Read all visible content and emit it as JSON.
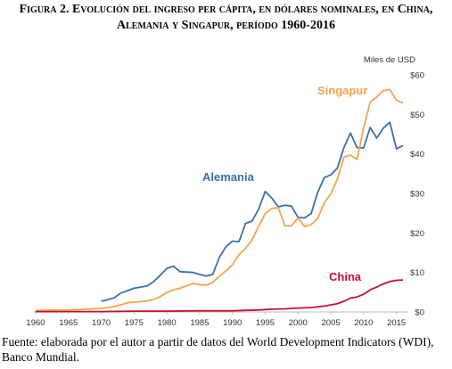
{
  "figure": {
    "title_line1": "Figura 2. Evolución del ingreso per cápita, en dólares nominales, en China,",
    "title_line2": "Alemania y Singapur, período 1960-2016",
    "source_line1": "Fuente: elaborada por el autor a partir de datos del World Development Indicators (WDI),",
    "source_line2": "Banco Mundial."
  },
  "chart_data": {
    "type": "line",
    "ylabel": "Miles de USD",
    "ylim": [
      0,
      60
    ],
    "xlim": [
      1960,
      2016
    ],
    "x_ticks": [
      1960,
      1965,
      1970,
      1975,
      1980,
      1985,
      1990,
      1995,
      2000,
      2005,
      2010,
      2015
    ],
    "y_ticks": [
      0,
      10,
      20,
      30,
      40,
      50,
      60
    ],
    "y_tick_labels": [
      "$0",
      "$10",
      "$20",
      "$30",
      "$40",
      "$50",
      "$60"
    ],
    "grid": false,
    "legend": "direct labels on lines",
    "series": [
      {
        "name": "Alemania",
        "color": "#3b6faa",
        "x": [
          1970,
          1971,
          1972,
          1973,
          1974,
          1975,
          1976,
          1977,
          1978,
          1979,
          1980,
          1981,
          1982,
          1983,
          1984,
          1985,
          1986,
          1987,
          1988,
          1989,
          1990,
          1991,
          1992,
          1993,
          1994,
          1995,
          1996,
          1997,
          1998,
          1999,
          2000,
          2001,
          2002,
          2003,
          2004,
          2005,
          2006,
          2007,
          2008,
          2009,
          2010,
          2011,
          2012,
          2013,
          2014,
          2015,
          2016
        ],
        "values": [
          2.7,
          3.1,
          3.6,
          4.8,
          5.4,
          6.0,
          6.3,
          6.6,
          7.7,
          9.3,
          11.0,
          11.6,
          10.2,
          10.1,
          10.0,
          9.5,
          9.1,
          9.5,
          13.8,
          16.5,
          17.9,
          17.8,
          22.4,
          23.0,
          26.0,
          30.5,
          28.8,
          26.6,
          27.0,
          26.8,
          23.9,
          23.8,
          24.9,
          30.3,
          34.0,
          34.7,
          36.4,
          41.6,
          45.3,
          41.6,
          41.5,
          46.7,
          44.0,
          46.5,
          48.0,
          41.3,
          42.1
        ]
      },
      {
        "name": "Singapur",
        "color": "#f6a24e",
        "x": [
          1960,
          1961,
          1962,
          1963,
          1964,
          1965,
          1966,
          1967,
          1968,
          1969,
          1970,
          1971,
          1972,
          1973,
          1974,
          1975,
          1976,
          1977,
          1978,
          1979,
          1980,
          1981,
          1982,
          1983,
          1984,
          1985,
          1986,
          1987,
          1988,
          1989,
          1990,
          1991,
          1992,
          1993,
          1994,
          1995,
          1996,
          1997,
          1998,
          1999,
          2000,
          2001,
          2002,
          2003,
          2004,
          2005,
          2006,
          2007,
          2008,
          2009,
          2010,
          2011,
          2012,
          2013,
          2014,
          2015,
          2016
        ],
        "values": [
          0.4,
          0.4,
          0.5,
          0.5,
          0.5,
          0.5,
          0.6,
          0.6,
          0.7,
          0.8,
          0.9,
          1.1,
          1.4,
          1.8,
          2.3,
          2.5,
          2.6,
          2.8,
          3.2,
          3.9,
          4.9,
          5.6,
          6.0,
          6.6,
          7.2,
          6.9,
          6.8,
          7.5,
          9.0,
          10.4,
          11.9,
          14.5,
          16.1,
          18.3,
          21.6,
          24.9,
          26.2,
          26.4,
          21.8,
          21.8,
          23.8,
          21.6,
          22.1,
          23.7,
          27.6,
          29.9,
          33.6,
          39.2,
          39.7,
          38.6,
          46.6,
          53.1,
          54.4,
          56.0,
          56.3,
          53.6,
          52.9
        ]
      },
      {
        "name": "China",
        "color": "#c8102e",
        "x": [
          1960,
          1965,
          1970,
          1975,
          1980,
          1985,
          1990,
          1992,
          1994,
          1996,
          1998,
          2000,
          2002,
          2004,
          2006,
          2007,
          2008,
          2009,
          2010,
          2011,
          2012,
          2013,
          2014,
          2015,
          2016
        ],
        "values": [
          0.1,
          0.1,
          0.1,
          0.2,
          0.2,
          0.3,
          0.3,
          0.4,
          0.5,
          0.7,
          0.8,
          1.0,
          1.1,
          1.5,
          2.1,
          2.7,
          3.5,
          3.8,
          4.5,
          5.6,
          6.3,
          7.1,
          7.7,
          8.0,
          8.1
        ]
      }
    ]
  }
}
